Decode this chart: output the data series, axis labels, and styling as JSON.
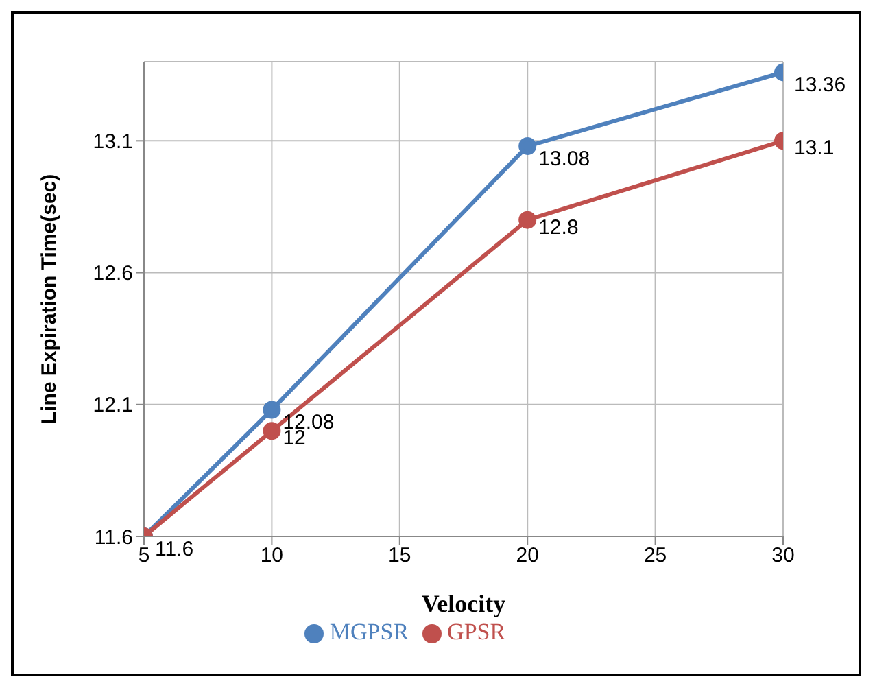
{
  "chart_data": {
    "type": "line",
    "xlabel": "Velocity",
    "ylabel": "Line Expiration Time(sec)",
    "x": [
      5,
      10,
      20,
      30
    ],
    "series": [
      {
        "name": "MGPSR",
        "color": "#4f81bd",
        "values": [
          11.6,
          12.08,
          13.08,
          13.36
        ],
        "value_labels": [
          "11.6",
          "12.08",
          "13.08",
          "13.36"
        ]
      },
      {
        "name": "GPSR",
        "color": "#c0504d",
        "values": [
          11.6,
          12,
          12.8,
          13.1
        ],
        "value_labels": [
          null,
          "12",
          "12.8",
          "13.1"
        ]
      }
    ],
    "xlim": [
      5,
      30
    ],
    "xticks": [
      5,
      10,
      15,
      20,
      25,
      30
    ],
    "ylim": [
      11.6,
      13.4
    ],
    "yticks": [
      11.6,
      12.1,
      12.6,
      13.1
    ],
    "grid": true,
    "legend": "bottom",
    "marker": "circle",
    "line_style": "solid"
  }
}
